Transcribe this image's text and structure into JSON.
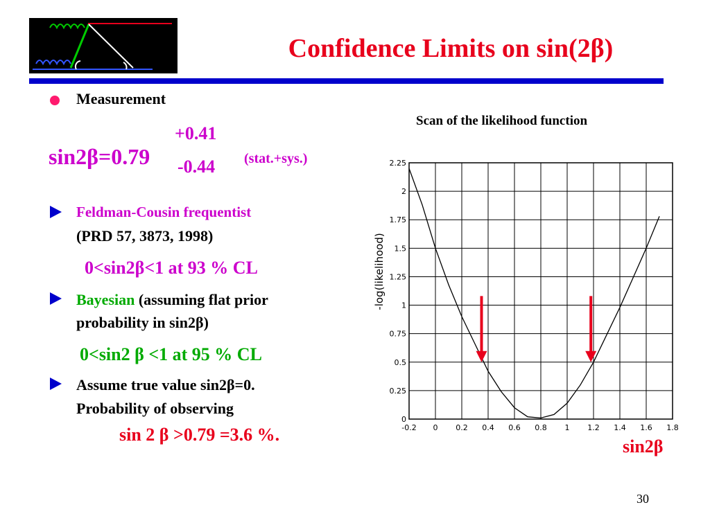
{
  "title": "Confidence Limits on sin(2β)",
  "bullets": {
    "measurement": "Measurement",
    "meas_main": "sin2β=0.79",
    "meas_plus": "+0.41",
    "meas_minus": "-0.44",
    "meas_note": "(stat.+sys.)",
    "fc_title": "Feldman-Cousin frequentist",
    "fc_ref": "(PRD 57, 3873, 1998)",
    "fc_result": "0<sin2β<1 at 93 % CL",
    "bayes_word": "Bayesian",
    "bayes_rest1": "(assuming flat prior",
    "bayes_rest2": "probability in sin2β)",
    "bayes_result": "0<sin2 β <1 at 95 % CL",
    "assume1": "Assume true value sin2β=0.",
    "assume2": "Probability of observing",
    "assume_result": "sin 2 β >0.79 =3.6 %."
  },
  "page_number": "30",
  "chart_data": {
    "type": "line",
    "title": "Scan of the likelihood function",
    "ylabel": "-log(likelihood)",
    "xlabel": "sin2β",
    "xlim": [
      -0.2,
      1.8
    ],
    "ylim": [
      0,
      2.25
    ],
    "x_ticks": [
      "-0.2",
      "0",
      "0.2",
      "0.4",
      "0.6",
      "0.8",
      "1",
      "1.2",
      "1.4",
      "1.6",
      "1.8"
    ],
    "y_ticks": [
      "0",
      "0.25",
      "0.5",
      "0.75",
      "1",
      "1.25",
      "1.5",
      "1.75",
      "2",
      "2.25"
    ],
    "x_tick_values": [
      -0.2,
      0,
      0.2,
      0.4,
      0.6,
      0.8,
      1,
      1.2,
      1.4,
      1.6,
      1.8
    ],
    "y_tick_values": [
      0,
      0.25,
      0.5,
      0.75,
      1,
      1.25,
      1.5,
      1.75,
      2,
      2.25
    ],
    "grid": true,
    "curve": {
      "x": [
        -0.2,
        -0.1,
        0,
        0.1,
        0.2,
        0.3,
        0.4,
        0.5,
        0.6,
        0.7,
        0.8,
        0.9,
        1.0,
        1.1,
        1.2,
        1.3,
        1.4,
        1.5,
        1.6,
        1.7
      ],
      "y": [
        2.2,
        1.88,
        1.5,
        1.18,
        0.9,
        0.66,
        0.42,
        0.24,
        0.1,
        0.02,
        0.01,
        0.04,
        0.14,
        0.3,
        0.5,
        0.74,
        0.98,
        1.24,
        1.5,
        1.78
      ]
    },
    "arrows": [
      {
        "x": 0.35,
        "y_from": 1.08,
        "y_to": 0.5,
        "color": "#e8001c"
      },
      {
        "x": 1.18,
        "y_from": 1.08,
        "y_to": 0.5,
        "color": "#e8001c"
      }
    ]
  }
}
